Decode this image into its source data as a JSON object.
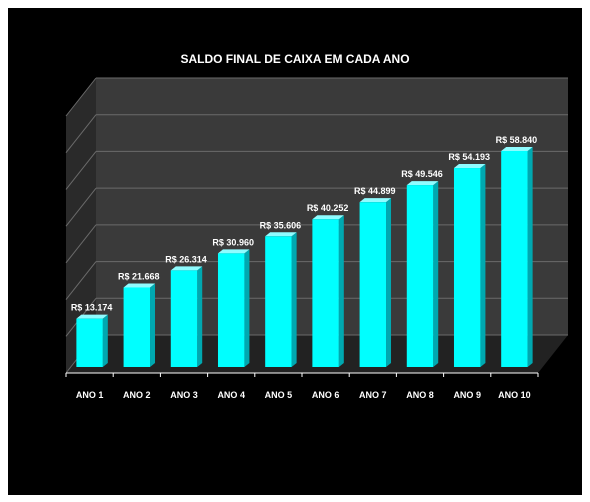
{
  "chart_data": {
    "type": "bar",
    "title": "SALDO FINAL DE CAIXA EM CADA ANO",
    "xlabel": "",
    "ylabel": "",
    "categories": [
      "ANO 1",
      "ANO 2",
      "ANO 3",
      "ANO 4",
      "ANO 5",
      "ANO 6",
      "ANO 7",
      "ANO 8",
      "ANO 9",
      "ANO 10"
    ],
    "values": [
      13174,
      21668,
      26314,
      30960,
      35606,
      40252,
      44899,
      49546,
      54193,
      58840
    ],
    "data_labels": [
      "R$ 13.174",
      "R$ 21.668",
      "R$ 26.314",
      "R$ 30.960",
      "R$ 35.606",
      "R$ 40.252",
      "R$ 44.899",
      "R$ 49.546",
      "R$ 54.193",
      "R$ 58.840"
    ],
    "ylim": [
      0,
      70000
    ],
    "grid": true,
    "legend": "none",
    "three_d": true,
    "colors": {
      "background": "#000000",
      "plot_back_wall": "#3a3a3a",
      "plot_side_wall": "#2a2a2a",
      "gridline": "#6a6a6a",
      "bar_front": "#00ffff",
      "bar_top": "#8ffcff",
      "bar_side": "#00a8b0",
      "text": "#ffffff"
    }
  }
}
